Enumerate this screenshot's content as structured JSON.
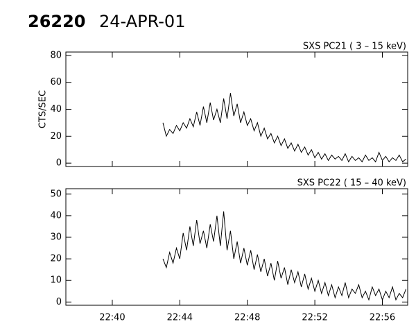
{
  "header": {
    "id": "26220",
    "date": "24-APR-01"
  },
  "chart_data": [
    {
      "type": "line",
      "title": "SXS PC21  (  3 – 15 keV)",
      "y_label": "CTS/SEC",
      "color": "#000000",
      "xlim": [
        37.25,
        57.5
      ],
      "xticks": [
        {
          "value": 40,
          "label": "22:40"
        },
        {
          "value": 44,
          "label": "22:44"
        },
        {
          "value": 48,
          "label": "22:48"
        },
        {
          "value": 52,
          "label": "22:52"
        },
        {
          "value": 56,
          "label": "22:56"
        }
      ],
      "ylim": [
        -2.5,
        82.5
      ],
      "yticks": [
        0,
        20,
        40,
        60,
        80
      ],
      "show_x_labels": false,
      "x": [
        43,
        43.2,
        43.4,
        43.6,
        43.8,
        44,
        44.2,
        44.4,
        44.6,
        44.8,
        45,
        45.2,
        45.4,
        45.6,
        45.8,
        46,
        46.2,
        46.4,
        46.6,
        46.8,
        47,
        47.2,
        47.4,
        47.6,
        47.8,
        48,
        48.2,
        48.4,
        48.6,
        48.8,
        49,
        49.2,
        49.4,
        49.6,
        49.8,
        50,
        50.2,
        50.4,
        50.6,
        50.8,
        51,
        51.2,
        51.4,
        51.6,
        51.8,
        52,
        52.2,
        52.4,
        52.6,
        52.8,
        53,
        53.2,
        53.4,
        53.6,
        53.8,
        54,
        54.2,
        54.4,
        54.6,
        54.8,
        55,
        55.2,
        55.4,
        55.6,
        55.8,
        56,
        56.2,
        56.4,
        56.6,
        56.8,
        57,
        57.2,
        57.4
      ],
      "values": [
        30,
        20,
        25,
        22,
        28,
        24,
        30,
        26,
        33,
        27,
        38,
        28,
        42,
        30,
        45,
        32,
        40,
        30,
        48,
        33,
        52,
        35,
        44,
        30,
        38,
        28,
        33,
        24,
        30,
        20,
        26,
        18,
        22,
        15,
        20,
        13,
        18,
        11,
        15,
        9,
        14,
        8,
        12,
        6,
        10,
        4,
        8,
        3,
        7,
        2,
        6,
        3,
        5,
        2,
        7,
        1,
        5,
        2,
        4,
        1,
        6,
        2,
        4,
        1,
        8,
        2,
        5,
        1,
        4,
        2,
        6,
        1,
        3
      ]
    },
    {
      "type": "line",
      "title": "SXS PC22  ( 15 – 40 keV)",
      "color": "#000000",
      "xlim": [
        37.25,
        57.5
      ],
      "xticks": [
        {
          "value": 40,
          "label": "22:40"
        },
        {
          "value": 44,
          "label": "22:44"
        },
        {
          "value": 48,
          "label": "22:48"
        },
        {
          "value": 52,
          "label": "22:52"
        },
        {
          "value": 56,
          "label": "22:56"
        }
      ],
      "ylim": [
        -1.5,
        52.5
      ],
      "yticks": [
        0,
        10,
        20,
        30,
        40,
        50
      ],
      "show_x_labels": true,
      "x": [
        43,
        43.2,
        43.4,
        43.6,
        43.8,
        44,
        44.2,
        44.4,
        44.6,
        44.8,
        45,
        45.2,
        45.4,
        45.6,
        45.8,
        46,
        46.2,
        46.4,
        46.6,
        46.8,
        47,
        47.2,
        47.4,
        47.6,
        47.8,
        48,
        48.2,
        48.4,
        48.6,
        48.8,
        49,
        49.2,
        49.4,
        49.6,
        49.8,
        50,
        50.2,
        50.4,
        50.6,
        50.8,
        51,
        51.2,
        51.4,
        51.6,
        51.8,
        52,
        52.2,
        52.4,
        52.6,
        52.8,
        53,
        53.2,
        53.4,
        53.6,
        53.8,
        54,
        54.2,
        54.4,
        54.6,
        54.8,
        55,
        55.2,
        55.4,
        55.6,
        55.8,
        56,
        56.2,
        56.4,
        56.6,
        56.8,
        57,
        57.2,
        57.4
      ],
      "values": [
        20,
        16,
        23,
        18,
        25,
        20,
        32,
        24,
        35,
        26,
        38,
        27,
        33,
        25,
        36,
        28,
        40,
        26,
        42,
        24,
        33,
        20,
        28,
        18,
        25,
        17,
        24,
        15,
        22,
        14,
        20,
        12,
        18,
        10,
        19,
        11,
        16,
        8,
        15,
        9,
        14,
        7,
        13,
        6,
        11,
        5,
        10,
        4,
        9,
        3,
        8,
        2,
        7,
        3,
        9,
        2,
        6,
        4,
        8,
        2,
        5,
        1,
        7,
        3,
        6,
        1,
        5,
        2,
        7,
        1,
        4,
        2,
        6
      ]
    }
  ]
}
